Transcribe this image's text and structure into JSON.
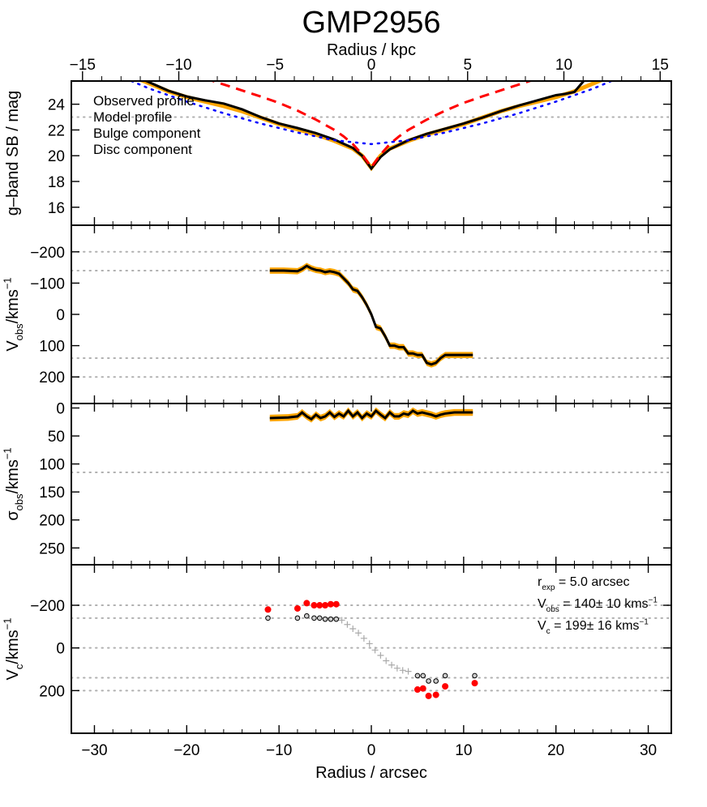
{
  "title": "GMP2956",
  "top_axis": {
    "label": "Radius / kpc",
    "range": [
      -15.58,
      15.58
    ],
    "ticks": [
      -15,
      -10,
      -5,
      0,
      5,
      10,
      15
    ]
  },
  "bottom_axis": {
    "label": "Radius / arcsec",
    "range": [
      -32.5,
      32.5
    ],
    "ticks": [
      -30,
      -20,
      -10,
      0,
      10,
      20,
      30
    ]
  },
  "colors": {
    "observed": "#000000",
    "model": "#ffa500",
    "bulge": "#ff0000",
    "disc": "#0000ff",
    "grid": "#b0b0b0",
    "grey_point": "#999999"
  },
  "chart_data": [
    {
      "id": "sb",
      "type": "line",
      "ylabel": "g–band SB / mag",
      "ylim": [
        25.8,
        14.6
      ],
      "yticks": [
        16,
        18,
        20,
        22,
        24
      ],
      "yticklabels": [
        "16",
        "18",
        "20",
        "22",
        "24"
      ],
      "reference_lines": [
        23.0
      ],
      "legend": {
        "placement": "top-left",
        "entries": [
          "Observed profile",
          "Model profile",
          "Bulge component",
          "Disc component"
        ]
      },
      "series": [
        {
          "name": "Observed profile",
          "style": "solid",
          "color": "#000000",
          "x": [
            -25,
            -22,
            -20,
            -18,
            -16,
            -14,
            -12,
            -10,
            -8,
            -6,
            -4,
            -2,
            -1,
            0,
            1,
            2,
            4,
            6,
            8,
            10,
            12,
            14,
            16,
            18,
            20,
            21,
            22,
            23
          ],
          "y": [
            26.0,
            25.05,
            24.6,
            24.3,
            24.05,
            23.6,
            23.0,
            22.5,
            22.15,
            21.75,
            21.25,
            20.6,
            20.0,
            19.0,
            19.9,
            20.5,
            21.2,
            21.7,
            22.1,
            22.5,
            22.95,
            23.45,
            23.9,
            24.3,
            24.7,
            24.8,
            24.95,
            25.8
          ]
        },
        {
          "name": "Model profile",
          "style": "solid",
          "color": "#ffa500",
          "x": [
            -25,
            -22,
            -20,
            -18,
            -16,
            -14,
            -12,
            -10,
            -8,
            -6,
            -4,
            -2,
            -1,
            0,
            1,
            2,
            4,
            6,
            8,
            10,
            12,
            14,
            16,
            18,
            20,
            22,
            25
          ],
          "y": [
            25.9,
            25.0,
            24.55,
            24.2,
            23.85,
            23.45,
            22.95,
            22.45,
            22.05,
            21.65,
            21.15,
            20.55,
            20.0,
            19.05,
            20.0,
            20.55,
            21.15,
            21.65,
            22.05,
            22.45,
            22.95,
            23.45,
            23.85,
            24.2,
            24.55,
            25.0,
            25.9
          ]
        },
        {
          "name": "Bulge component",
          "style": "dashed",
          "color": "#ff0000",
          "x": [
            -18,
            -15,
            -12,
            -10,
            -8,
            -6,
            -4,
            -3,
            -2,
            -1,
            -0.5,
            0,
            0.5,
            1,
            2,
            3,
            4,
            6,
            8,
            10,
            12,
            15,
            18
          ],
          "y": [
            26.0,
            25.3,
            24.6,
            24.1,
            23.5,
            22.8,
            22.0,
            21.5,
            20.9,
            20.1,
            19.6,
            19.1,
            19.6,
            20.1,
            20.9,
            21.5,
            22.0,
            22.8,
            23.5,
            24.1,
            24.6,
            25.3,
            26.0
          ]
        },
        {
          "name": "Disc component",
          "style": "dotted",
          "color": "#0000ff",
          "x": [
            -26,
            -24,
            -20,
            -16,
            -12,
            -8,
            -4,
            0,
            4,
            8,
            12,
            16,
            20,
            24,
            26
          ],
          "y": [
            25.8,
            25.2,
            24.2,
            23.3,
            22.5,
            21.8,
            21.2,
            20.9,
            21.2,
            21.8,
            22.5,
            23.3,
            24.2,
            25.2,
            25.8
          ]
        }
      ]
    },
    {
      "id": "vobs",
      "type": "line",
      "ylabel": "V_obs/kms^-1",
      "ylabel_parts": [
        "V",
        "obs",
        "/kms",
        "−1"
      ],
      "ylim": [
        -285,
        285
      ],
      "yticks": [
        -200,
        -100,
        0,
        100,
        200
      ],
      "yticklabels": [
        "−200",
        "−100",
        "0",
        "100",
        "200"
      ],
      "reference_lines": [
        -200,
        -140,
        140,
        200
      ],
      "band_halfwidth": 10,
      "series": [
        {
          "name": "V_obs",
          "color": "#000000",
          "x": [
            -11,
            -9.5,
            -8,
            -7.5,
            -7,
            -6.5,
            -6,
            -5.5,
            -5,
            -4.5,
            -4,
            -3.5,
            -3,
            -2.5,
            -2,
            -1.5,
            -1,
            -0.5,
            0,
            0.5,
            1,
            1.5,
            2,
            2.5,
            3,
            3.5,
            4,
            4.5,
            5,
            5.5,
            6,
            6.5,
            7,
            7.5,
            8,
            9,
            10,
            11
          ],
          "y": [
            -140,
            -140,
            -138,
            -145,
            -155,
            -147,
            -142,
            -140,
            -135,
            -138,
            -135,
            -130,
            -115,
            -100,
            -80,
            -75,
            -55,
            -30,
            0,
            40,
            45,
            70,
            100,
            100,
            105,
            105,
            125,
            125,
            130,
            130,
            155,
            160,
            155,
            140,
            130,
            130,
            130,
            130
          ]
        }
      ]
    },
    {
      "id": "sigma",
      "type": "line",
      "ylabel": "σ_obs/kms^-1",
      "ylabel_parts": [
        "σ",
        "obs",
        "/kms",
        "−1"
      ],
      "ylim": [
        -8,
        280
      ],
      "yticks": [
        0,
        50,
        100,
        150,
        200,
        250
      ],
      "yticklabels": [
        "0",
        "50",
        "100",
        "150",
        "200",
        "250"
      ],
      "reference_lines": [
        115
      ],
      "band_halfwidth": 6,
      "series": [
        {
          "name": "sigma_obs",
          "color": "#000000",
          "x": [
            -11,
            -9,
            -8,
            -7.5,
            -7,
            -6.5,
            -6,
            -5.5,
            -5,
            -4.5,
            -4,
            -3.5,
            -3,
            -2.5,
            -2,
            -1.5,
            -1,
            -0.5,
            0,
            0.5,
            1,
            1.5,
            2,
            2.5,
            3,
            3.5,
            4,
            4.5,
            5,
            5.5,
            6,
            6.5,
            7,
            7.5,
            8,
            9,
            10,
            11
          ],
          "y": [
            18,
            17,
            15,
            8,
            15,
            20,
            12,
            18,
            15,
            8,
            16,
            10,
            15,
            5,
            15,
            8,
            18,
            10,
            15,
            5,
            12,
            18,
            8,
            15,
            15,
            10,
            12,
            5,
            10,
            8,
            10,
            12,
            15,
            12,
            10,
            8,
            8,
            8
          ]
        }
      ]
    },
    {
      "id": "vc",
      "type": "scatter",
      "ylabel": "V_c/kms^-1",
      "ylabel_parts": [
        "V",
        "c",
        "/kms",
        "−1"
      ],
      "ylim": [
        -390,
        400
      ],
      "yticks": [
        -200,
        0,
        200
      ],
      "yticklabels": [
        "−200",
        "0",
        "200"
      ],
      "reference_lines": [
        -200,
        -140,
        0,
        140,
        200
      ],
      "annotations": [
        {
          "parts": [
            "r",
            "exp",
            " = 5.0 arcsec"
          ],
          "color": "#000000"
        },
        {
          "parts": [
            "V",
            "obs",
            " = 140± 10 kms",
            "−1"
          ],
          "color": "#000000"
        },
        {
          "parts": [
            "V",
            "c",
            " = 199± 16 kms",
            "−1"
          ],
          "color": "#ff0000"
        }
      ],
      "series": [
        {
          "name": "V_c",
          "marker": "filled-circle",
          "color": "#ff0000",
          "x": [
            -11.2,
            -8,
            -7,
            -6.2,
            -5.6,
            -5,
            -4.4,
            -3.8,
            5,
            5.6,
            6.2,
            7,
            8,
            11.2
          ],
          "y": [
            -180,
            -185,
            -210,
            -200,
            -200,
            -200,
            -205,
            -205,
            195,
            190,
            225,
            220,
            180,
            165
          ]
        },
        {
          "name": "V_obs",
          "marker": "open-circle",
          "color": "#000000",
          "x": [
            -11.2,
            -8,
            -7,
            -6.2,
            -5.6,
            -5,
            -4.4,
            -3.8,
            5,
            5.6,
            6.2,
            7,
            8,
            11.2
          ],
          "y": [
            -140,
            -140,
            -150,
            -140,
            -140,
            -135,
            -135,
            -135,
            130,
            130,
            155,
            155,
            130,
            130
          ]
        },
        {
          "name": "V_inner",
          "marker": "plus",
          "color": "#aaaaaa",
          "x": [
            -3.2,
            -2.6,
            -2,
            -1.4,
            -0.8,
            -0.2,
            0.4,
            1,
            1.6,
            2.2,
            2.8,
            3.4,
            4
          ],
          "y": [
            -130,
            -110,
            -90,
            -70,
            -45,
            -20,
            10,
            35,
            60,
            80,
            95,
            105,
            110
          ]
        }
      ]
    }
  ]
}
